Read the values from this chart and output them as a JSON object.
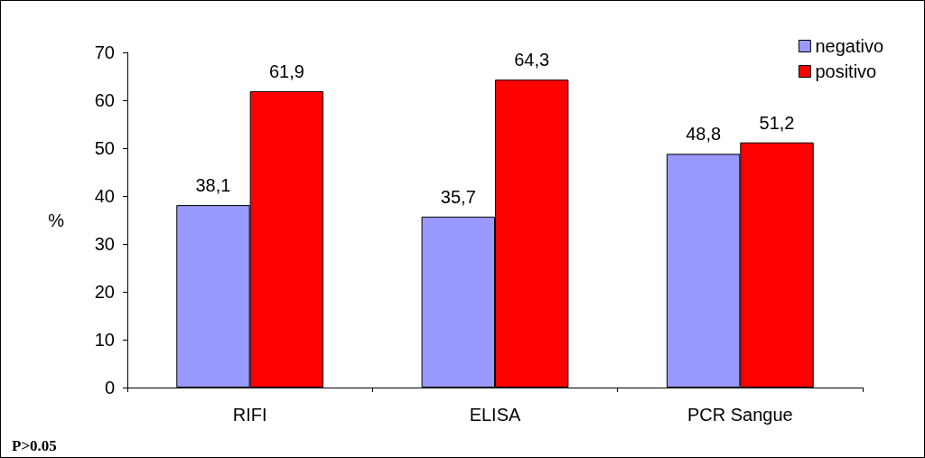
{
  "chart_data": {
    "type": "bar",
    "ylabel": "%",
    "categories": [
      "RIFI",
      "ELISA",
      "PCR Sangue"
    ],
    "series": [
      {
        "name": "negativo",
        "color": "#9999ff",
        "values": [
          38.1,
          35.7,
          48.8
        ],
        "value_labels": [
          "38,1",
          "35,7",
          "48,8"
        ]
      },
      {
        "name": "positivo",
        "color": "#ff0000",
        "values": [
          61.9,
          64.3,
          51.2
        ],
        "value_labels": [
          "61,9",
          "64,3",
          "51,2"
        ]
      }
    ],
    "ylim": [
      0,
      70
    ],
    "yticks": [
      0,
      10,
      20,
      30,
      40,
      50,
      60,
      70
    ],
    "grid": false,
    "legend": "top right",
    "annotations": [
      "P>0.05"
    ]
  }
}
